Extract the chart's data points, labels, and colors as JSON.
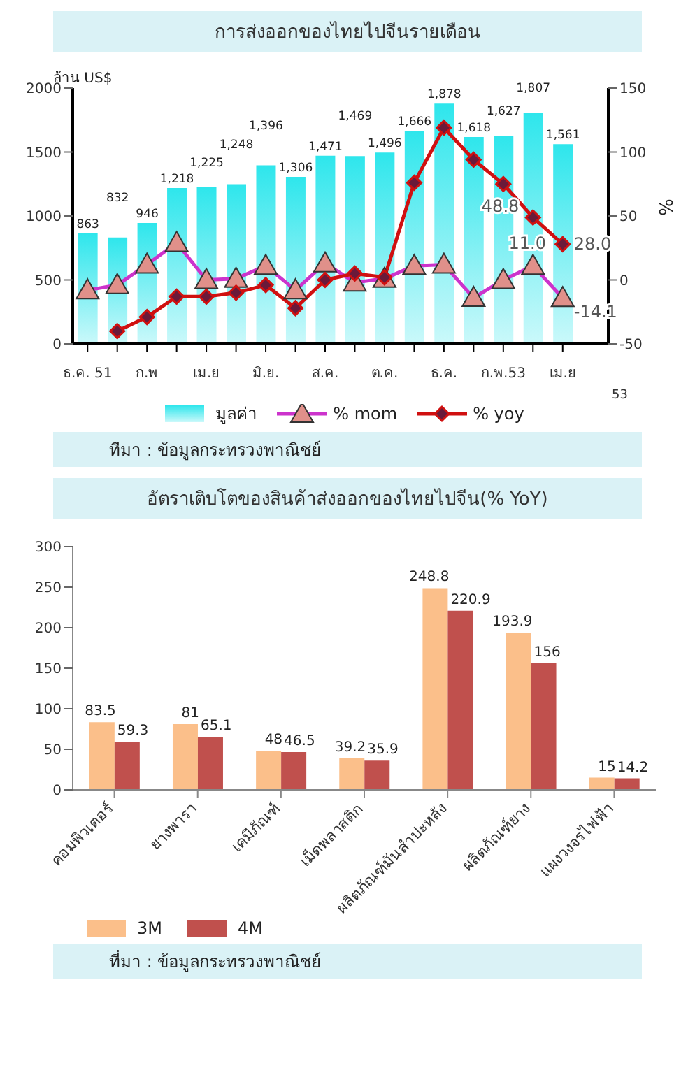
{
  "chart_data": [
    {
      "type": "bar",
      "title": "การส่งออกของไทยไปจีนรายเดือน",
      "ylabel": "ล้าน US$",
      "y2label": "%",
      "categories": [
        "ธ.ค. 51",
        null,
        "ก.พ",
        null,
        "เม.ย",
        null,
        "มิ.ย.",
        null,
        "ส.ค.",
        null,
        "ต.ค.",
        null,
        "ธ.ค.",
        null,
        "ก.พ.53",
        null,
        "เม.ย"
      ],
      "series": [
        {
          "name": "มูลค่า",
          "type": "bar",
          "color": "#2ee6ec",
          "values": [
            863,
            832,
            946,
            1218,
            1225,
            1248,
            1396,
            1306,
            1471,
            1469,
            1496,
            1666,
            1878,
            1618,
            1627,
            1807,
            1561
          ],
          "value_labels": [
            "863",
            "832",
            "946",
            "1,218",
            "1,225",
            "1,248",
            "1,396",
            "1,306",
            "1,471",
            "1,469",
            "1,496",
            "1,666",
            "1,878",
            "1,618",
            "1,627",
            "1,807",
            "1,561"
          ]
        },
        {
          "name": "% mom",
          "type": "line",
          "axis": "y2",
          "marker": "triangle",
          "color": "#cc33cc",
          "values": [
            -8,
            -4,
            12,
            29,
            0,
            1,
            11,
            -8,
            13,
            -2,
            1,
            11,
            12,
            -14,
            0,
            11.0,
            -14.1
          ],
          "value_labels": [
            null,
            null,
            null,
            null,
            null,
            null,
            null,
            null,
            null,
            null,
            null,
            null,
            null,
            null,
            null,
            "11.0",
            "-14.1"
          ]
        },
        {
          "name": "% yoy",
          "type": "line",
          "axis": "y2",
          "marker": "diamond",
          "color": "#d01010",
          "values": [
            null,
            -40,
            -29,
            -13,
            -13,
            -10,
            -4,
            -22,
            0,
            5,
            2,
            76,
            119,
            94,
            75,
            48.8,
            28.0
          ],
          "value_labels": [
            null,
            null,
            null,
            null,
            null,
            null,
            null,
            null,
            null,
            null,
            null,
            null,
            null,
            null,
            null,
            "48.8",
            "28.0"
          ]
        }
      ],
      "ylim": [
        0,
        2000
      ],
      "yticks": [
        0,
        500,
        1000,
        1500,
        2000
      ],
      "y2lim": [
        -50,
        150
      ],
      "y2ticks": [
        -50,
        0,
        50,
        100,
        150
      ],
      "legend": "bottom",
      "annotations": [
        "53",
        "ทีมา : ข้อมูลกระทรวงพาณิชย์"
      ]
    },
    {
      "type": "bar",
      "title": "อัตราเติบโตของสินค้าส่งออกของไทยไปจีน(% YoY)",
      "categories": [
        "คอมพิวเตอร์",
        "ยางพารา",
        "เคมีภัณฑ์",
        "เม็ดพลาสติก",
        "ผลิตภัณฑ์มันสำปะหลัง",
        "ผลิตภัณฑ์ยาง",
        "แผงวงจรไฟฟ้า"
      ],
      "series": [
        {
          "name": "3M",
          "color": "#fbbf8a",
          "values": [
            83.5,
            81,
            48,
            39.2,
            248.8,
            193.9,
            15
          ]
        },
        {
          "name": "4M",
          "color": "#c0504d",
          "values": [
            59.3,
            65.1,
            46.5,
            35.9,
            220.9,
            156,
            14.2
          ]
        }
      ],
      "ylim": [
        0,
        300
      ],
      "yticks": [
        0,
        50,
        100,
        150,
        200,
        250,
        300
      ],
      "data_labels": true,
      "legend": "bottom left",
      "annotations": [
        "ที่มา : ข้อมูลกระทรวงพาณิชย์"
      ]
    }
  ]
}
